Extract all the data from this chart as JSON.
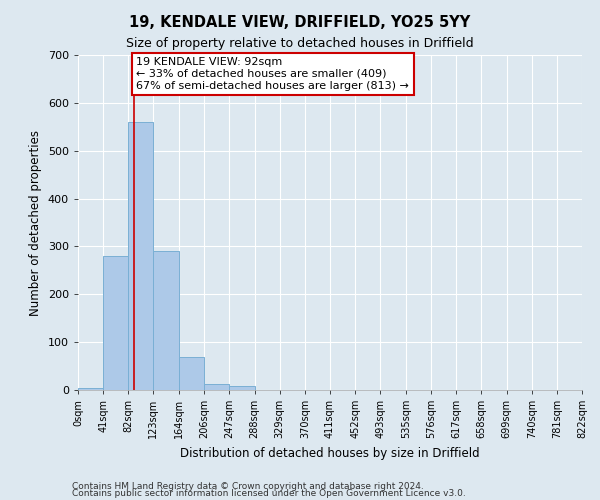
{
  "title": "19, KENDALE VIEW, DRIFFIELD, YO25 5YY",
  "subtitle": "Size of property relative to detached houses in Driffield",
  "xlabel": "Distribution of detached houses by size in Driffield",
  "ylabel": "Number of detached properties",
  "bar_values": [
    5,
    280,
    560,
    290,
    68,
    13,
    8,
    0,
    0,
    0,
    0,
    0,
    0,
    0,
    0,
    0,
    0,
    0,
    0,
    0
  ],
  "bin_edges": [
    0,
    41,
    82,
    123,
    164,
    206,
    247,
    288,
    329,
    370,
    411,
    452,
    493,
    535,
    576,
    617,
    658,
    699,
    740,
    781,
    822
  ],
  "x_labels": [
    "0sqm",
    "41sqm",
    "82sqm",
    "123sqm",
    "164sqm",
    "206sqm",
    "247sqm",
    "288sqm",
    "329sqm",
    "370sqm",
    "411sqm",
    "452sqm",
    "493sqm",
    "535sqm",
    "576sqm",
    "617sqm",
    "658sqm",
    "699sqm",
    "740sqm",
    "781sqm",
    "822sqm"
  ],
  "bar_color": "#adc9e8",
  "bar_edge_color": "#7aafd4",
  "redline_x": 92,
  "ylim": [
    0,
    700
  ],
  "yticks": [
    0,
    100,
    200,
    300,
    400,
    500,
    600,
    700
  ],
  "annotation_title": "19 KENDALE VIEW: 92sqm",
  "annotation_line1": "← 33% of detached houses are smaller (409)",
  "annotation_line2": "67% of semi-detached houses are larger (813) →",
  "annotation_box_color": "#ffffff",
  "annotation_box_edge": "#cc0000",
  "redline_color": "#cc0000",
  "footer1": "Contains HM Land Registry data © Crown copyright and database right 2024.",
  "footer2": "Contains public sector information licensed under the Open Government Licence v3.0.",
  "background_color": "#dde8f0",
  "axes_background": "#dde8f0",
  "grid_color": "#ffffff",
  "figsize": [
    6.0,
    5.0
  ],
  "dpi": 100
}
